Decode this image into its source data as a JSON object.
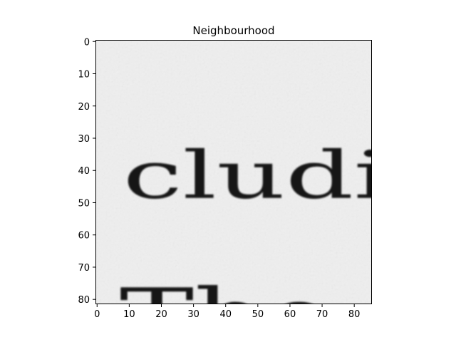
{
  "chart_data": {
    "type": "heatmap",
    "title": "Neighbourhood",
    "xlabel": "",
    "ylabel": "",
    "xlim": [
      -0.5,
      85.5
    ],
    "ylim": [
      81.5,
      -0.5
    ],
    "xticks": [
      0,
      10,
      20,
      30,
      40,
      50,
      60,
      70,
      80
    ],
    "yticks": [
      0,
      10,
      20,
      30,
      40,
      50,
      60,
      70,
      80
    ],
    "colormap": "gray",
    "grid": false,
    "image_content": {
      "description_of_rendered_text": "cropped scanned document patch",
      "line1_text": "cludi",
      "line2_text": "The"
    }
  }
}
